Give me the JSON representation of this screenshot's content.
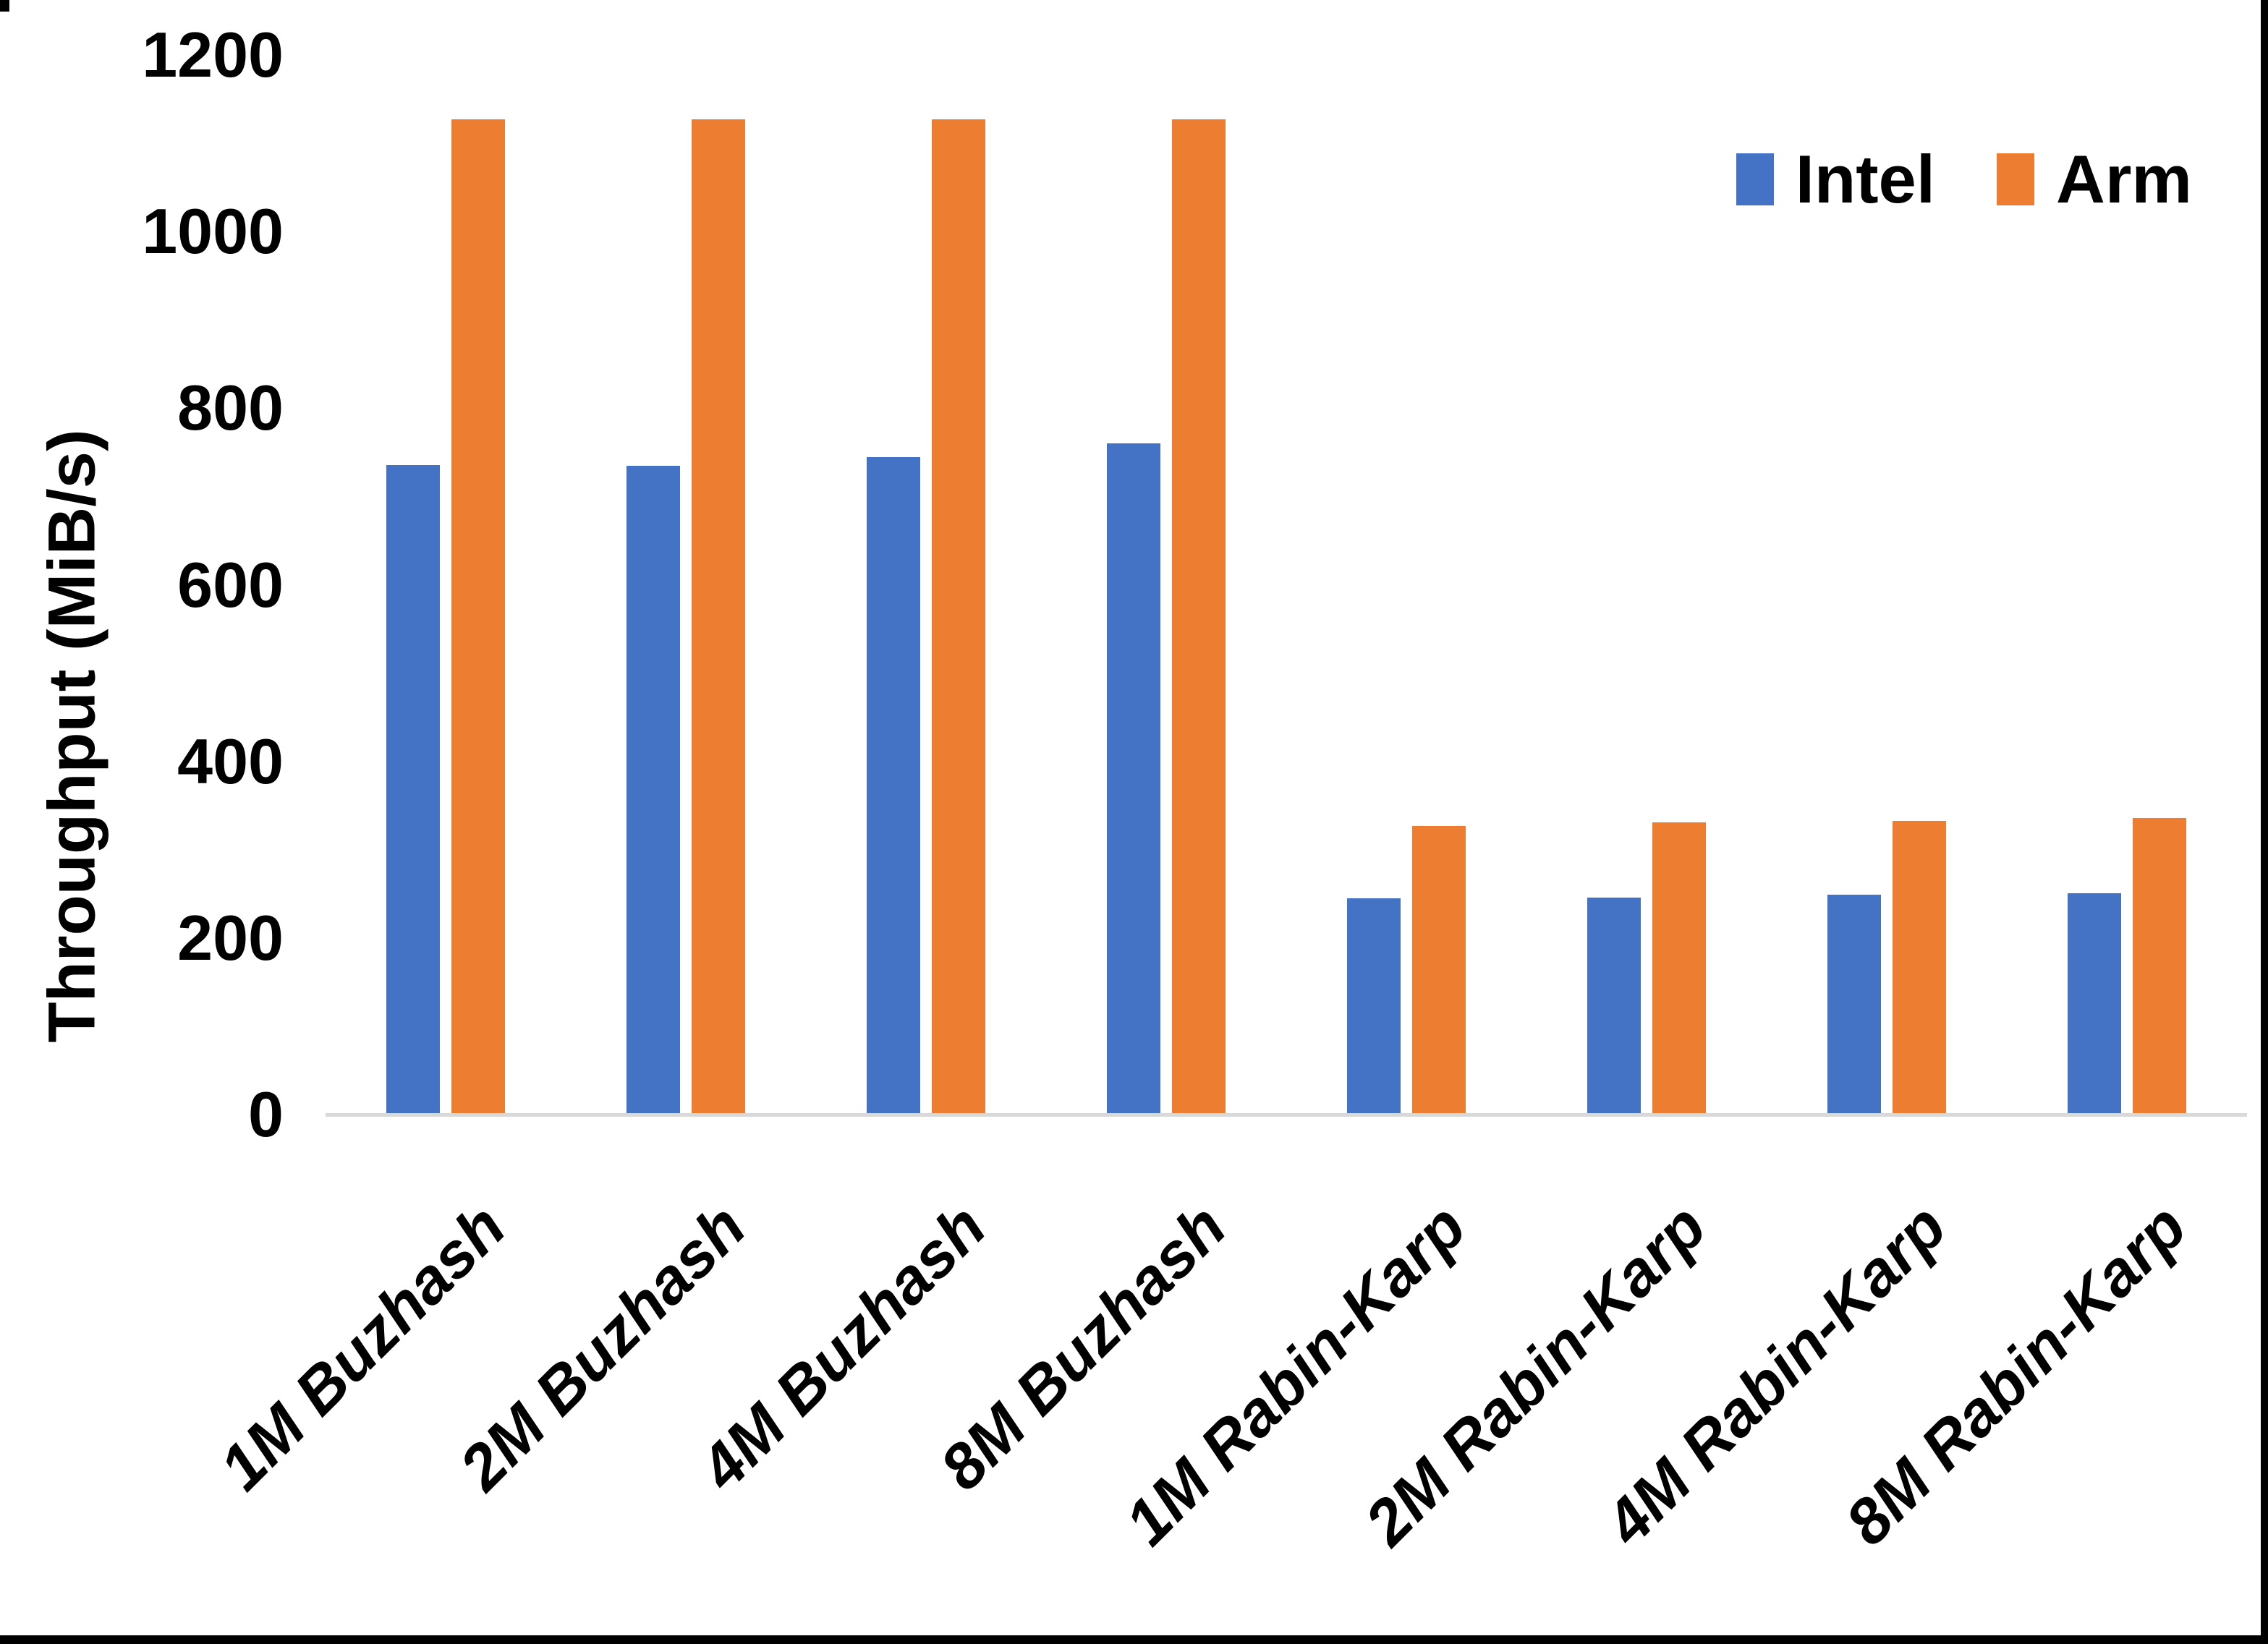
{
  "chart_data": {
    "type": "bar",
    "title": "",
    "xlabel": "",
    "ylabel": "Throughput (MiB/s)",
    "ylim": [
      0,
      1200
    ],
    "yticks": [
      0,
      200,
      400,
      600,
      800,
      1000,
      1200
    ],
    "grid": false,
    "legend_position": "top-right",
    "categories": [
      "1M Buzhash",
      "2M Buzhash",
      "4M Buzhash",
      "8M Buzhash",
      "1M Rabin-Karp",
      "2M Rabin-Karp",
      "4M Rabin-Karp",
      "8M Rabin-Karp"
    ],
    "series": [
      {
        "name": "Intel",
        "color": "#4472C4",
        "values": [
          736,
          735,
          745,
          760,
          245,
          246,
          249,
          251
        ]
      },
      {
        "name": "Arm",
        "color": "#ED7D31",
        "values": [
          1127,
          1127,
          1127,
          1127,
          327,
          331,
          333,
          336
        ]
      }
    ]
  },
  "colors": {
    "background": "#FFFFFF",
    "axis_line": "#D9D9D9",
    "text": "#000000",
    "frame": "#000000"
  }
}
